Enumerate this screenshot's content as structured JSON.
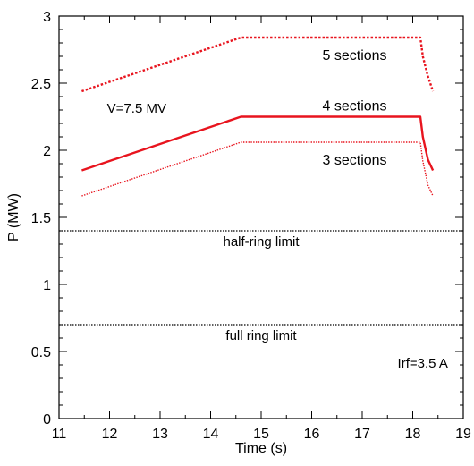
{
  "chart_data": {
    "type": "line",
    "xlabel": "Time (s)",
    "ylabel": "P (MW)",
    "xlim": [
      11,
      19
    ],
    "ylim": [
      0,
      3
    ],
    "xticks": [
      11,
      12,
      13,
      14,
      15,
      16,
      17,
      18,
      19
    ],
    "yticks": [
      0,
      0.5,
      1,
      1.5,
      2,
      2.5,
      3
    ],
    "grid": false,
    "series": [
      {
        "name": "5 sections",
        "style": "dotted",
        "color": "#e8141e",
        "x": [
          11.45,
          14.6,
          18.15,
          18.2,
          18.3,
          18.4
        ],
        "y": [
          2.44,
          2.84,
          2.84,
          2.7,
          2.55,
          2.44
        ]
      },
      {
        "name": "4 sections",
        "style": "solid",
        "color": "#e8141e",
        "x": [
          11.45,
          14.6,
          18.15,
          18.2,
          18.3,
          18.4
        ],
        "y": [
          1.85,
          2.25,
          2.25,
          2.1,
          1.93,
          1.85
        ]
      },
      {
        "name": "3 sections",
        "style": "dotted-thin",
        "color": "#e8141e",
        "x": [
          11.45,
          14.6,
          18.15,
          18.2,
          18.3,
          18.4
        ],
        "y": [
          1.66,
          2.06,
          2.06,
          1.92,
          1.74,
          1.66
        ]
      }
    ],
    "hlines": [
      {
        "name": "half-ring limit",
        "y": 1.4
      },
      {
        "name": "full ring limit",
        "y": 0.7
      }
    ],
    "annotations": [
      {
        "text": "V=7.5 MV",
        "x": 11.95,
        "y": 2.28
      },
      {
        "text": "Irf=3.5 A",
        "x": 17.7,
        "y": 0.38
      }
    ]
  }
}
